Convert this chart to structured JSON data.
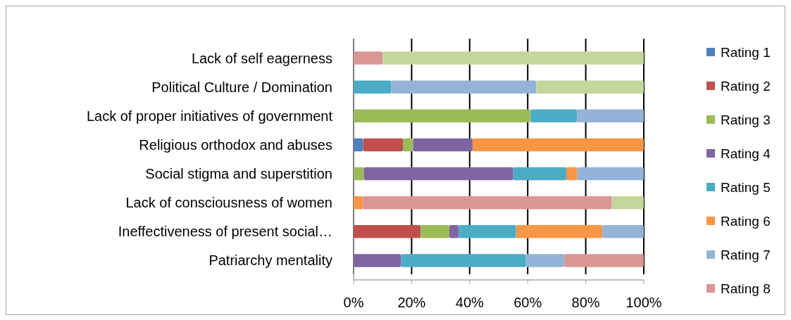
{
  "chart_data": {
    "type": "bar",
    "orientation": "horizontal",
    "stacked": true,
    "categories": [
      "Lack of self eagerness",
      "Political Culture / Domination",
      "Lack of proper initiatives of government",
      "Religious orthodox and abuses",
      "Social stigma and superstition",
      "Lack of consciousness of women",
      "Ineffectiveness of present social…",
      "Patriarchy mentality"
    ],
    "series": [
      {
        "name": "Rating 1",
        "color": "#4f81bd",
        "values": [
          0,
          0,
          0,
          3.3,
          0,
          0,
          0,
          0
        ]
      },
      {
        "name": "Rating 2",
        "color": "#c0504d",
        "values": [
          0,
          0,
          0,
          13.7,
          0,
          0,
          23.1,
          0
        ]
      },
      {
        "name": "Rating 3",
        "color": "#9bbb59",
        "values": [
          0,
          0,
          61,
          3.5,
          3.6,
          0,
          9.9,
          0
        ]
      },
      {
        "name": "Rating 4",
        "color": "#8064a2",
        "values": [
          0,
          0,
          0,
          20.5,
          51.4,
          0,
          3.2,
          16.4
        ]
      },
      {
        "name": "Rating 5",
        "color": "#4bacc6",
        "values": [
          0,
          13,
          16,
          0,
          18.3,
          0,
          19.8,
          43
        ]
      },
      {
        "name": "Rating 6",
        "color": "#f79646",
        "values": [
          0,
          0,
          0,
          59,
          3.8,
          3.2,
          29.7,
          0
        ]
      },
      {
        "name": "Rating 7",
        "color": "#95b3d7",
        "values": [
          0,
          50,
          23,
          0,
          22.9,
          0,
          14.3,
          13.2
        ]
      },
      {
        "name": "Rating 8",
        "color": "#d99694",
        "values": [
          10,
          0,
          0,
          0,
          0,
          85.8,
          0,
          27.4
        ]
      },
      {
        "color": "#c3d69b",
        "values": [
          90,
          37,
          0,
          0,
          0,
          11,
          0,
          0
        ]
      }
    ],
    "xlim": [
      0,
      100
    ],
    "xticks": [
      {
        "value": 0,
        "label": "0%"
      },
      {
        "value": 20,
        "label": "20%"
      },
      {
        "value": 40,
        "label": "40%"
      },
      {
        "value": 60,
        "label": "60%"
      },
      {
        "value": 80,
        "label": "80%"
      },
      {
        "value": 100,
        "label": "100%"
      }
    ],
    "grid": "x",
    "legend": "right"
  }
}
